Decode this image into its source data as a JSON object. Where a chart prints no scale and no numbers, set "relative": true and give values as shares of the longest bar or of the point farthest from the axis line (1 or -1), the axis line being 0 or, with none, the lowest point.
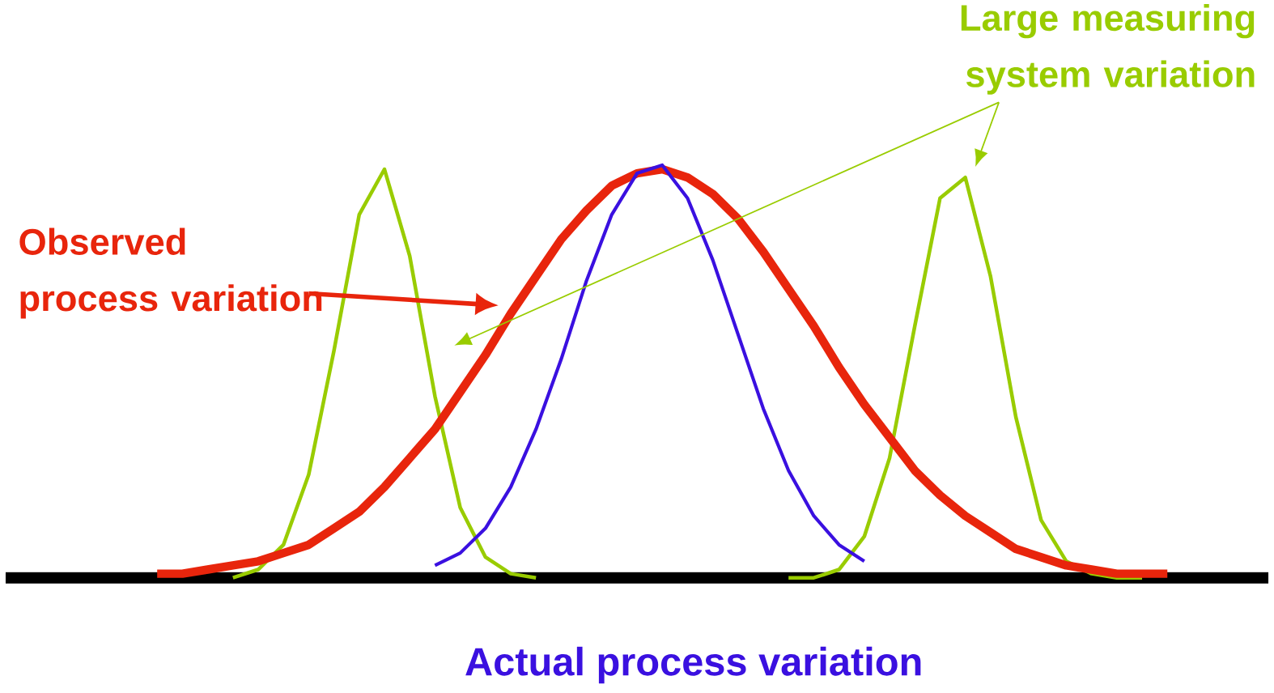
{
  "chart_data": {
    "type": "line",
    "relative": true,
    "tick_labels": false,
    "xlabel": "Actual process variation",
    "categories": [
      null,
      null,
      null,
      null,
      null,
      null,
      null,
      null,
      null,
      null,
      null,
      null,
      null,
      null,
      null,
      null,
      null,
      null,
      null,
      null,
      null,
      null,
      null,
      null,
      null,
      null,
      null,
      null,
      null,
      null,
      null,
      null,
      null,
      null,
      null,
      null,
      null,
      null,
      null,
      null,
      null
    ],
    "series": [
      {
        "color": "#99cc00",
        "values": [
          null,
          null,
          null,
          0.0,
          0.02,
          0.08,
          0.25,
          0.55,
          0.88,
          0.99,
          0.78,
          0.44,
          0.17,
          0.05,
          0.01,
          0.0,
          null,
          null,
          null,
          null,
          null,
          null,
          null,
          null,
          null,
          null,
          null,
          null,
          null,
          null,
          null,
          null,
          null,
          null,
          null,
          null,
          null,
          null,
          null,
          null,
          null
        ]
      },
      {
        "color": "#99cc00",
        "values": [
          null,
          null,
          null,
          null,
          null,
          null,
          null,
          null,
          null,
          null,
          null,
          null,
          null,
          null,
          null,
          null,
          null,
          null,
          null,
          null,
          null,
          null,
          null,
          null,
          null,
          0.0,
          0.0,
          0.02,
          0.1,
          0.29,
          0.61,
          0.92,
          0.97,
          0.73,
          0.39,
          0.14,
          0.04,
          0.01,
          0.0,
          0.0,
          null
        ]
      },
      {
        "color": "#e8250c",
        "values": [
          0.01,
          0.01,
          0.02,
          0.03,
          0.04,
          0.06,
          0.08,
          0.12,
          0.16,
          0.22,
          0.29,
          0.36,
          0.45,
          0.54,
          0.64,
          0.73,
          0.82,
          0.89,
          0.95,
          0.98,
          0.99,
          0.97,
          0.93,
          0.87,
          0.79,
          0.7,
          0.61,
          0.51,
          0.42,
          0.34,
          0.26,
          0.2,
          0.15,
          0.11,
          0.07,
          0.05,
          0.03,
          0.02,
          0.01,
          0.01,
          0.01
        ]
      },
      {
        "color": "#3a10e0",
        "values": [
          null,
          null,
          null,
          null,
          null,
          null,
          null,
          null,
          null,
          null,
          null,
          0.03,
          0.06,
          0.12,
          0.22,
          0.36,
          0.53,
          0.72,
          0.88,
          0.98,
          1.0,
          0.92,
          0.77,
          0.59,
          0.41,
          0.26,
          0.15,
          0.08,
          0.04,
          null,
          null,
          null,
          null,
          null,
          null,
          null,
          null,
          null,
          null,
          null,
          null
        ]
      }
    ],
    "annotations": [
      "Observed process variation",
      "Large measuring system variation"
    ]
  }
}
